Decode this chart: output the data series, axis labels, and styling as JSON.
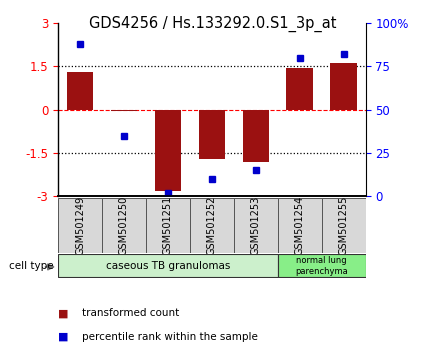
{
  "title": "GDS4256 / Hs.133292.0.S1_3p_at",
  "samples": [
    "GSM501249",
    "GSM501250",
    "GSM501251",
    "GSM501252",
    "GSM501253",
    "GSM501254",
    "GSM501255"
  ],
  "bar_values": [
    1.3,
    -0.05,
    -2.8,
    -1.7,
    -1.8,
    1.45,
    1.6
  ],
  "percentile_values": [
    88,
    35,
    2,
    10,
    15,
    80,
    82
  ],
  "bar_color": "#9B1111",
  "dot_color": "#0000CC",
  "ylim_left": [
    -3,
    3
  ],
  "ylim_right": [
    0,
    100
  ],
  "yticks_left": [
    -3,
    -1.5,
    0,
    1.5,
    3
  ],
  "ytick_labels_left": [
    "-3",
    "-1.5",
    "0",
    "1.5",
    "3"
  ],
  "yticks_right": [
    0,
    25,
    50,
    75,
    100
  ],
  "ytick_labels_right": [
    "0",
    "25",
    "50",
    "75",
    "100%"
  ],
  "cell_type_label": "cell type",
  "group1_label": "caseous TB granulomas",
  "group2_label": "normal lung\nparenchyma",
  "group1_color": "#ccf0cc",
  "group2_color": "#88ee88",
  "xtick_bg_color": "#d8d8d8",
  "legend_red_label": "transformed count",
  "legend_blue_label": "percentile rank within the sample",
  "bar_width": 0.6,
  "background_color": "#ffffff",
  "title_fontsize": 10.5,
  "tick_fontsize": 8.5,
  "xtick_fontsize": 7
}
